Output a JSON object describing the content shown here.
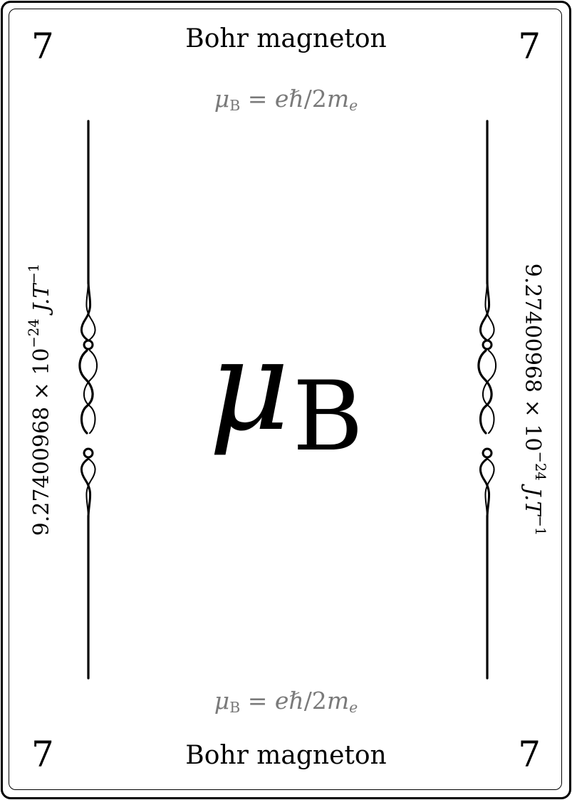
{
  "card": {
    "rank": "7",
    "name": "Bohr magneton",
    "formula": {
      "lhs_symbol": "μ",
      "lhs_subscript": "B",
      "equals": " = ",
      "e": "e",
      "hbar": "ℏ",
      "divide": "/2",
      "m": "m",
      "m_subscript": "e"
    },
    "symbol": {
      "letter": "μ",
      "subscript": "B"
    },
    "value": {
      "mantissa": "9.27400968 × 10",
      "exponent": "−24",
      "unit": " J.T",
      "unit_exponent": "−1"
    },
    "colors": {
      "ink": "#000000",
      "formula_gray": "#7a7a7a",
      "background": "#ffffff"
    },
    "icons": [
      "scroll-ornament-left",
      "scroll-ornament-right"
    ]
  }
}
